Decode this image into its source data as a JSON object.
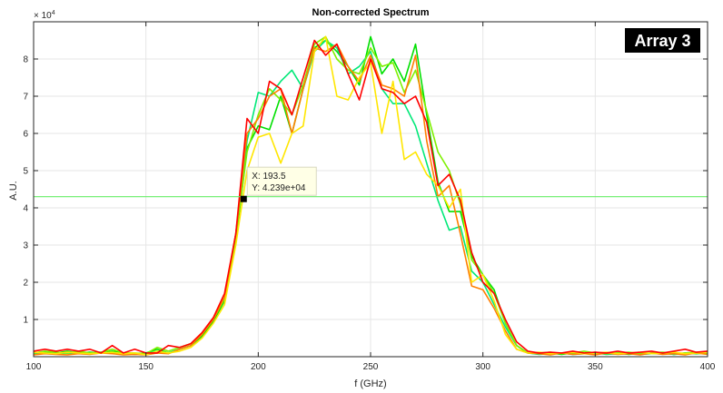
{
  "chart_data": {
    "type": "line",
    "title": "Non-corrected Spectrum",
    "xlabel": "f (GHz)",
    "ylabel": "A.U.",
    "y_multiplier_label": "× 10",
    "y_multiplier_exponent": "4",
    "xlim": [
      100,
      400
    ],
    "ylim": [
      0,
      9
    ],
    "y_units_scale": 10000,
    "grid": true,
    "xticks": [
      "100",
      "150",
      "200",
      "250",
      "300",
      "350",
      "400"
    ],
    "yticks": [
      "1",
      "2",
      "3",
      "4",
      "5",
      "6",
      "7",
      "8"
    ],
    "x": [
      100,
      105,
      110,
      115,
      120,
      125,
      130,
      135,
      140,
      145,
      150,
      155,
      160,
      165,
      170,
      175,
      180,
      185,
      190,
      195,
      200,
      205,
      210,
      215,
      220,
      225,
      230,
      235,
      240,
      245,
      250,
      255,
      260,
      265,
      270,
      275,
      280,
      285,
      290,
      295,
      300,
      305,
      310,
      315,
      320,
      325,
      330,
      335,
      340,
      345,
      350,
      355,
      360,
      365,
      370,
      375,
      380,
      385,
      390,
      395,
      400
    ],
    "series": [
      {
        "name": "green",
        "color": "#00e000",
        "values": [
          0.1,
          0.12,
          0.1,
          0.15,
          0.1,
          0.12,
          0.1,
          0.15,
          0.1,
          0.08,
          0.1,
          0.2,
          0.1,
          0.2,
          0.3,
          0.55,
          0.95,
          1.5,
          3.1,
          5.6,
          6.2,
          6.1,
          7.0,
          6.0,
          7.2,
          8.3,
          8.5,
          8.2,
          7.8,
          7.3,
          8.6,
          7.6,
          8.0,
          7.4,
          8.4,
          6.5,
          4.7,
          3.9,
          3.9,
          2.7,
          2.2,
          1.8,
          0.9,
          0.3,
          0.1,
          0.08,
          0.1,
          0.06,
          0.1,
          0.08,
          0.12,
          0.08,
          0.1,
          0.06,
          0.1,
          0.08,
          0.1,
          0.06,
          0.1,
          0.08,
          0.1
        ]
      },
      {
        "name": "spring-green",
        "color": "#00e878",
        "values": [
          0.08,
          0.1,
          0.08,
          0.1,
          0.08,
          0.1,
          0.12,
          0.1,
          0.08,
          0.06,
          0.08,
          0.15,
          0.1,
          0.2,
          0.3,
          0.6,
          1.0,
          1.6,
          3.3,
          5.8,
          7.1,
          7.0,
          7.4,
          7.7,
          7.2,
          8.2,
          8.5,
          8.3,
          7.6,
          7.8,
          8.2,
          7.2,
          6.8,
          6.8,
          6.2,
          5.2,
          4.2,
          3.4,
          3.5,
          2.3,
          2.0,
          1.4,
          0.8,
          0.3,
          0.1,
          0.06,
          0.08,
          0.1,
          0.06,
          0.08,
          0.1,
          0.06,
          0.08,
          0.1,
          0.06,
          0.08,
          0.1,
          0.06,
          0.08,
          0.1,
          0.08
        ]
      },
      {
        "name": "yellow-green",
        "color": "#7ef000",
        "values": [
          0.1,
          0.15,
          0.12,
          0.1,
          0.15,
          0.1,
          0.12,
          0.2,
          0.1,
          0.1,
          0.08,
          0.25,
          0.15,
          0.25,
          0.35,
          0.6,
          1.0,
          1.55,
          3.2,
          5.5,
          6.5,
          7.2,
          6.9,
          6.5,
          7.3,
          8.4,
          8.6,
          8.0,
          7.7,
          7.6,
          8.3,
          7.8,
          7.9,
          7.1,
          7.7,
          6.6,
          5.5,
          5.0,
          4.1,
          2.6,
          2.2,
          1.7,
          0.9,
          0.3,
          0.1,
          0.1,
          0.12,
          0.08,
          0.1,
          0.15,
          0.1,
          0.08,
          0.1,
          0.12,
          0.08,
          0.1,
          0.12,
          0.08,
          0.1,
          0.12,
          0.1
        ]
      },
      {
        "name": "orange",
        "color": "#ff7f00",
        "values": [
          0.05,
          0.08,
          0.06,
          0.05,
          0.08,
          0.06,
          0.1,
          0.08,
          0.05,
          0.06,
          0.05,
          0.1,
          0.08,
          0.2,
          0.3,
          0.6,
          1.0,
          1.6,
          3.3,
          6.0,
          6.4,
          7.0,
          7.2,
          6.0,
          7.2,
          8.3,
          8.2,
          8.4,
          7.8,
          7.4,
          8.1,
          7.3,
          7.2,
          7.0,
          8.1,
          5.8,
          4.3,
          4.6,
          3.3,
          1.9,
          1.8,
          1.3,
          0.7,
          0.2,
          0.1,
          0.08,
          0.05,
          0.1,
          0.06,
          0.08,
          0.05,
          0.1,
          0.06,
          0.08,
          0.05,
          0.1,
          0.06,
          0.08,
          0.05,
          0.1,
          0.06
        ]
      },
      {
        "name": "yellow",
        "color": "#ffe600",
        "values": [
          0.12,
          0.1,
          0.08,
          0.12,
          0.1,
          0.08,
          0.1,
          0.12,
          0.08,
          0.1,
          0.05,
          0.15,
          0.1,
          0.15,
          0.25,
          0.5,
          0.9,
          1.4,
          3.0,
          5.0,
          5.9,
          6.0,
          5.2,
          6.0,
          6.2,
          8.2,
          8.6,
          7.0,
          6.9,
          7.5,
          7.9,
          6.0,
          7.4,
          5.3,
          5.5,
          4.9,
          4.6,
          4.0,
          4.5,
          2.0,
          2.2,
          1.5,
          0.6,
          0.2,
          0.1,
          0.12,
          0.08,
          0.1,
          0.12,
          0.08,
          0.1,
          0.12,
          0.08,
          0.1,
          0.12,
          0.08,
          0.1,
          0.12,
          0.08,
          0.1,
          0.12
        ]
      },
      {
        "name": "red",
        "color": "#ff0000",
        "values": [
          0.15,
          0.2,
          0.15,
          0.2,
          0.15,
          0.2,
          0.1,
          0.3,
          0.1,
          0.2,
          0.1,
          0.1,
          0.3,
          0.25,
          0.35,
          0.65,
          1.05,
          1.7,
          3.3,
          6.4,
          6.0,
          7.4,
          7.2,
          6.5,
          7.5,
          8.5,
          8.1,
          8.4,
          7.6,
          6.9,
          8.0,
          7.2,
          7.1,
          6.8,
          7.0,
          6.3,
          4.6,
          4.9,
          4.2,
          2.8,
          2.0,
          1.7,
          1.0,
          0.4,
          0.15,
          0.1,
          0.12,
          0.1,
          0.15,
          0.1,
          0.12,
          0.1,
          0.15,
          0.1,
          0.12,
          0.15,
          0.1,
          0.15,
          0.2,
          0.12,
          0.15
        ]
      }
    ],
    "reference_line": {
      "y": 4.3,
      "color": "#66ee66"
    },
    "datatip": {
      "x": 193.5,
      "y": 4.239,
      "x_label": "X: 193.5",
      "y_label": "Y: 4.239e+04"
    },
    "annotation": "Array 3"
  }
}
